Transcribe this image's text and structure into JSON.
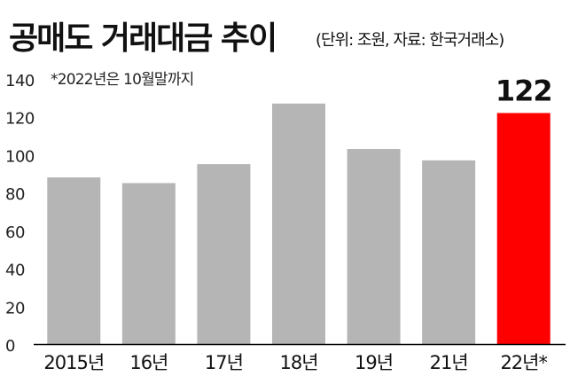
{
  "title": "공매도 거래대금 추이",
  "subtitle": "(단위: 조원, 자료: 한국거래소)",
  "note": "*2022년은 10월말까지",
  "chart_data": {
    "type": "bar",
    "categories": [
      "2015년",
      "16년",
      "17년",
      "18년",
      "19년",
      "21년",
      "22년*"
    ],
    "values": [
      88,
      85,
      95,
      127,
      103,
      97,
      122
    ],
    "highlight_label": "122",
    "ylim": [
      0,
      140
    ],
    "yticks": [
      0,
      20,
      40,
      60,
      80,
      100,
      120,
      140
    ],
    "grid": false,
    "colors": {
      "bar": "#b5b5b5",
      "highlight": "#ff0000",
      "axis": "#000000"
    }
  }
}
